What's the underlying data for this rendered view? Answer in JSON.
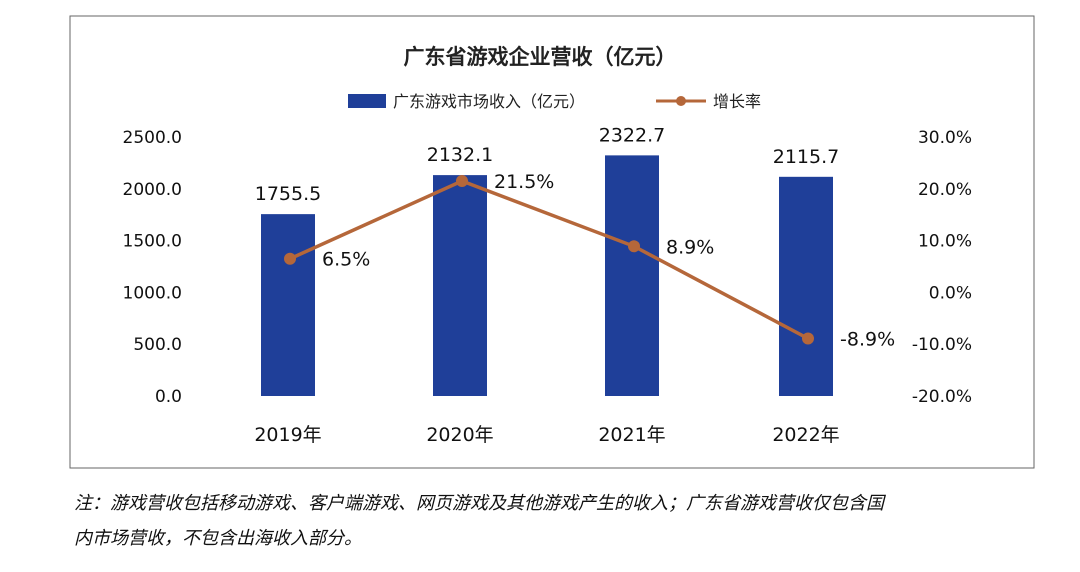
{
  "chart_data": {
    "type": "bar",
    "title": "广东省游戏企业营收（亿元）",
    "categories": [
      "2019年",
      "2020年",
      "2021年",
      "2022年"
    ],
    "series": [
      {
        "name": "广东游戏市场收入（亿元）",
        "type": "bar",
        "axis": "left",
        "color": "#1F3F99",
        "values": [
          1755.5,
          2132.1,
          2322.7,
          2115.7
        ],
        "labels": [
          "1755.5",
          "2132.1",
          "2322.7",
          "2115.7"
        ]
      },
      {
        "name": "增长率",
        "type": "line",
        "axis": "right",
        "color": "#B5673A",
        "values": [
          6.5,
          21.5,
          8.9,
          -8.9
        ],
        "labels": [
          "6.5%",
          "21.5%",
          "8.9%",
          "-8.9%"
        ]
      }
    ],
    "y_left": {
      "range": [
        0,
        2500
      ],
      "ticks": [
        0,
        500,
        1000,
        1500,
        2000,
        2500
      ],
      "tick_labels": [
        "0.0",
        "500.0",
        "1000.0",
        "1500.0",
        "2000.0",
        "2500.0"
      ]
    },
    "y_right": {
      "range": [
        -20,
        30
      ],
      "ticks": [
        -20,
        -10,
        0,
        10,
        20,
        30
      ],
      "tick_labels": [
        "-20.0%",
        "-10.0%",
        "0.0%",
        "10.0%",
        "20.0%",
        "30.0%"
      ]
    },
    "grid": false,
    "legend_position": "top"
  },
  "note": {
    "line1": "注：游戏营收包括移动游戏、客户端游戏、网页游戏及其他游戏产生的收入；广东省游戏营收仅包含国",
    "line2": "内市场营收，不包含出海收入部分。"
  }
}
